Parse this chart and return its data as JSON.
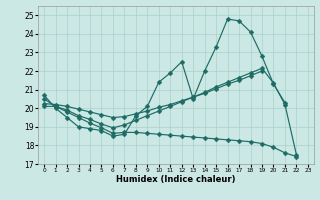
{
  "xlabel": "Humidex (Indice chaleur)",
  "bg_color": "#cce8e5",
  "line_color": "#1e6b65",
  "grid_color": "#aad0cc",
  "xlim": [
    -0.5,
    23.5
  ],
  "ylim": [
    17,
    25.5
  ],
  "yticks": [
    17,
    18,
    19,
    20,
    21,
    22,
    23,
    24,
    25
  ],
  "xtick_labels": [
    "0",
    "1",
    "2",
    "3",
    "4",
    "5",
    "6",
    "7",
    "8",
    "9",
    "10",
    "11",
    "12",
    "13",
    "14",
    "15",
    "16",
    "17",
    "18",
    "19",
    "20",
    "21",
    "22",
    "23"
  ],
  "series1_x": [
    0,
    1,
    2,
    3,
    4,
    5,
    6,
    7,
    8,
    9,
    10,
    11,
    12,
    13,
    14,
    15,
    16,
    17,
    18,
    19,
    20,
    21
  ],
  "series1_y": [
    20.7,
    20.0,
    19.5,
    19.0,
    18.9,
    18.8,
    18.5,
    18.6,
    19.6,
    20.1,
    21.4,
    21.9,
    22.5,
    20.5,
    22.0,
    23.3,
    24.8,
    24.7,
    24.1,
    22.8,
    21.3,
    20.3
  ],
  "series2_x": [
    0,
    1,
    2,
    3,
    4,
    5,
    6,
    7,
    8,
    9,
    10,
    11,
    12,
    13,
    14,
    15,
    16,
    17,
    18,
    19,
    20,
    21,
    22
  ],
  "series2_y": [
    20.1,
    20.1,
    19.9,
    19.6,
    19.4,
    19.15,
    18.95,
    19.1,
    19.35,
    19.6,
    19.85,
    20.1,
    20.35,
    20.6,
    20.85,
    21.15,
    21.4,
    21.65,
    21.9,
    22.15,
    21.35,
    20.2,
    17.5
  ],
  "series3_x": [
    0,
    1,
    2,
    3,
    4,
    5,
    6,
    7,
    8,
    9,
    10,
    11,
    12,
    13,
    14,
    15,
    16,
    17,
    18,
    19
  ],
  "series3_y": [
    20.25,
    20.2,
    20.1,
    19.95,
    19.8,
    19.65,
    19.5,
    19.55,
    19.7,
    19.85,
    20.05,
    20.2,
    20.4,
    20.6,
    20.8,
    21.05,
    21.3,
    21.5,
    21.75,
    22.0
  ],
  "series4_x": [
    0,
    1,
    2,
    3,
    4,
    5,
    6,
    7,
    8,
    9,
    10,
    11,
    12,
    13,
    14,
    15,
    16,
    17,
    18,
    19,
    20,
    21,
    22
  ],
  "series4_y": [
    20.5,
    20.1,
    19.8,
    19.5,
    19.2,
    18.95,
    18.65,
    18.7,
    18.7,
    18.65,
    18.6,
    18.55,
    18.5,
    18.45,
    18.4,
    18.35,
    18.3,
    18.25,
    18.2,
    18.1,
    17.9,
    17.6,
    17.4
  ],
  "marker_size": 2.5
}
